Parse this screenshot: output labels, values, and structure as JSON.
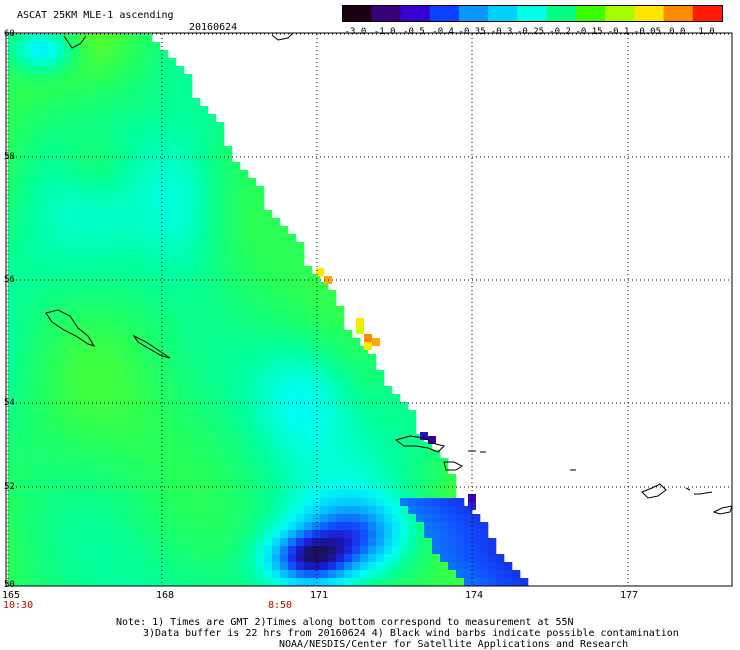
{
  "header": {
    "title": "ASCAT 25KM MLE-1 ascending",
    "date": "20160624"
  },
  "colorbar": {
    "labels": [
      "-3.0",
      "-1.0",
      "-0.5",
      "-0.4",
      "-0.35",
      "-0.3",
      "-0.25",
      "-0.2",
      "-0.15",
      "-0.1",
      "-0.05",
      "0.0",
      "1.0"
    ],
    "colors": [
      "#1a0010",
      "#3a007a",
      "#3500d0",
      "#0a40ff",
      "#0a96ff",
      "#00d2ff",
      "#00ffe6",
      "#00ff82",
      "#3cff00",
      "#a5ff00",
      "#ffe600",
      "#ff8c00",
      "#ff1a00"
    ]
  },
  "axes": {
    "lat_labels": [
      "60",
      "58",
      "56",
      "54",
      "52",
      "50"
    ],
    "lon_labels": [
      "165",
      "168",
      "171",
      "174",
      "177"
    ],
    "time_labels": [
      "10:30",
      "8:50"
    ]
  },
  "notes": {
    "line1": "Note: 1) Times are GMT 2)Times along bottom correspond to measurement at 55N",
    "line2": "3)Data buffer is 22 hrs from 20160624 4) Black wind barbs indicate possible contamination",
    "line3": "NOAA/NESDIS/Center for Satellite Applications and Research"
  }
}
